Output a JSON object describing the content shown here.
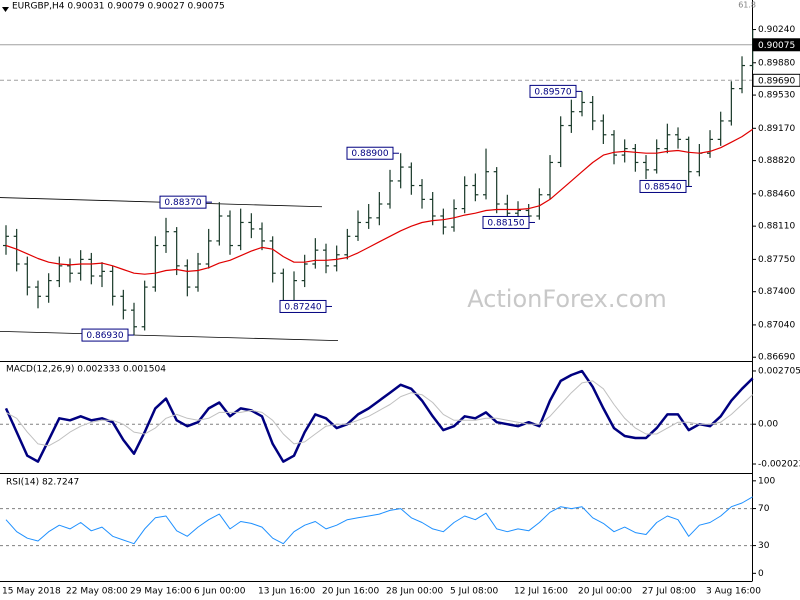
{
  "chart_data": [
    {
      "type": "ohlc",
      "title": "EURGBP,H4 0.90031 0.90079 0.90027 0.90075",
      "categories": [
        "15 May 2018",
        null,
        null,
        null,
        null,
        null,
        "22 May 08:00",
        null,
        null,
        null,
        null,
        null,
        "29 May 16:00",
        null,
        null,
        null,
        null,
        null,
        "6 Jun 00:00",
        null,
        null,
        null,
        null,
        null,
        "13 Jun 16:00",
        null,
        null,
        null,
        null,
        null,
        "20 Jun 16:00",
        null,
        null,
        null,
        null,
        null,
        "28 Jun 00:00",
        null,
        null,
        null,
        null,
        null,
        "5 Jul 08:00",
        null,
        null,
        null,
        null,
        null,
        "12 Jul 16:00",
        null,
        null,
        null,
        null,
        null,
        "20 Jul 00:00",
        null,
        null,
        null,
        null,
        null,
        "27 Jul 08:00",
        null,
        null,
        null,
        null,
        null,
        "3 Aug 16:00",
        null,
        null,
        null,
        null
      ],
      "open": [
        0.879,
        0.88,
        0.877,
        0.8745,
        0.8735,
        0.8752,
        0.8768,
        0.876,
        0.8775,
        0.8757,
        0.8762,
        0.8735,
        0.872,
        0.8702,
        0.8745,
        0.879,
        0.8805,
        0.8768,
        0.8745,
        0.877,
        0.8795,
        0.8822,
        0.879,
        0.8815,
        0.8808,
        0.8795,
        0.876,
        0.873,
        0.8752,
        0.877,
        0.8785,
        0.8768,
        0.878,
        0.88,
        0.8815,
        0.882,
        0.8835,
        0.886,
        0.8875,
        0.8855,
        0.884,
        0.8822,
        0.881,
        0.883,
        0.8855,
        0.8845,
        0.887,
        0.8835,
        0.8825,
        0.8828,
        0.8822,
        0.8845,
        0.888,
        0.892,
        0.8935,
        0.8945,
        0.8925,
        0.891,
        0.8888,
        0.8895,
        0.888,
        0.8872,
        0.8895,
        0.891,
        0.8905,
        0.887,
        0.889,
        0.8905,
        0.8925,
        0.896,
        0.8985
      ],
      "high": [
        0.8812,
        0.8808,
        0.8778,
        0.8752,
        0.876,
        0.8778,
        0.8776,
        0.8785,
        0.8782,
        0.8772,
        0.8768,
        0.8742,
        0.8728,
        0.8752,
        0.88,
        0.882,
        0.881,
        0.8775,
        0.8782,
        0.8808,
        0.8837,
        0.8828,
        0.883,
        0.8825,
        0.8815,
        0.88,
        0.8765,
        0.8762,
        0.878,
        0.8798,
        0.8792,
        0.879,
        0.8808,
        0.8828,
        0.8835,
        0.8848,
        0.8872,
        0.889,
        0.888,
        0.8862,
        0.8848,
        0.883,
        0.884,
        0.8865,
        0.8868,
        0.8895,
        0.8875,
        0.8845,
        0.8838,
        0.8835,
        0.8852,
        0.8888,
        0.893,
        0.8948,
        0.8957,
        0.8952,
        0.8932,
        0.8915,
        0.8905,
        0.89,
        0.8888,
        0.8905,
        0.8922,
        0.8918,
        0.8908,
        0.89,
        0.8915,
        0.8935,
        0.8968,
        0.8995,
        0.9024
      ],
      "low": [
        0.878,
        0.8762,
        0.8736,
        0.8722,
        0.8728,
        0.8745,
        0.875,
        0.8752,
        0.8748,
        0.8745,
        0.8725,
        0.871,
        0.8693,
        0.8698,
        0.874,
        0.8782,
        0.8758,
        0.8735,
        0.874,
        0.8765,
        0.879,
        0.878,
        0.8785,
        0.8798,
        0.8785,
        0.875,
        0.8724,
        0.8726,
        0.8745,
        0.8765,
        0.876,
        0.8762,
        0.8775,
        0.8795,
        0.8808,
        0.8812,
        0.883,
        0.8852,
        0.8845,
        0.883,
        0.8812,
        0.8802,
        0.8805,
        0.8825,
        0.8838,
        0.884,
        0.8825,
        0.8815,
        0.8818,
        0.8815,
        0.8818,
        0.884,
        0.8875,
        0.8912,
        0.893,
        0.8915,
        0.89,
        0.8878,
        0.888,
        0.887,
        0.8862,
        0.8868,
        0.889,
        0.8895,
        0.8854,
        0.8865,
        0.8885,
        0.8898,
        0.892,
        0.8955,
        0.898
      ],
      "close": [
        0.88,
        0.877,
        0.8745,
        0.8735,
        0.8752,
        0.8768,
        0.876,
        0.8775,
        0.8757,
        0.8762,
        0.8735,
        0.872,
        0.8702,
        0.8745,
        0.879,
        0.8805,
        0.8768,
        0.8745,
        0.877,
        0.8795,
        0.8822,
        0.879,
        0.8815,
        0.8808,
        0.8795,
        0.876,
        0.873,
        0.8752,
        0.877,
        0.8785,
        0.8768,
        0.878,
        0.88,
        0.8815,
        0.882,
        0.8835,
        0.886,
        0.8875,
        0.8855,
        0.884,
        0.8822,
        0.881,
        0.883,
        0.8855,
        0.8845,
        0.887,
        0.8835,
        0.8825,
        0.8828,
        0.8822,
        0.8845,
        0.888,
        0.892,
        0.8935,
        0.8945,
        0.8925,
        0.891,
        0.8888,
        0.8895,
        0.888,
        0.8872,
        0.8895,
        0.891,
        0.8905,
        0.887,
        0.889,
        0.8905,
        0.8925,
        0.896,
        0.8985,
        0.90075
      ],
      "color": "#183828",
      "ma": {
        "color": "#e00000",
        "values": [
          0.879,
          0.8786,
          0.8781,
          0.8776,
          0.8772,
          0.877,
          0.8769,
          0.877,
          0.877,
          0.8771,
          0.8768,
          0.8764,
          0.876,
          0.8759,
          0.876,
          0.8763,
          0.8764,
          0.8762,
          0.8763,
          0.8766,
          0.8771,
          0.8774,
          0.8779,
          0.8784,
          0.8788,
          0.8786,
          0.8778,
          0.8772,
          0.8772,
          0.8774,
          0.8774,
          0.8775,
          0.8777,
          0.8782,
          0.8788,
          0.8794,
          0.88,
          0.8806,
          0.8811,
          0.8815,
          0.8817,
          0.8818,
          0.882,
          0.8823,
          0.8825,
          0.8828,
          0.8829,
          0.8829,
          0.8829,
          0.883,
          0.8833,
          0.884,
          0.885,
          0.886,
          0.887,
          0.888,
          0.8888,
          0.8891,
          0.8892,
          0.8891,
          0.889,
          0.889,
          0.8892,
          0.8893,
          0.8891,
          0.889,
          0.8892,
          0.8896,
          0.8902,
          0.8908,
          0.8916
        ]
      },
      "ylim": [
        0.8666,
        0.9043
      ],
      "yticks": [
        {
          "value": 0.8669,
          "label": "0.86690"
        },
        {
          "value": 0.8704,
          "label": "0.87040"
        },
        {
          "value": 0.874,
          "label": "0.87400"
        },
        {
          "value": 0.8775,
          "label": "0.87750"
        },
        {
          "value": 0.8811,
          "label": "0.88110"
        },
        {
          "value": 0.8846,
          "label": "0.88460"
        },
        {
          "value": 0.8882,
          "label": "0.88820"
        },
        {
          "value": 0.8917,
          "label": "0.89170"
        },
        {
          "value": 0.8953,
          "label": "0.89530"
        },
        {
          "value": 0.8988,
          "label": "0.89880"
        },
        {
          "value": 0.9024,
          "label": "0.90240"
        }
      ],
      "price_lines": [
        {
          "value": 0.90075,
          "label": "0.90075",
          "style": "solid"
        },
        {
          "value": 0.8969,
          "label": "0.89690",
          "style": "dashed"
        }
      ],
      "annotations": [
        {
          "value": 0.8837,
          "label": "0.88370"
        },
        {
          "value": 0.8693,
          "label": "0.86930"
        },
        {
          "value": 0.8724,
          "label": "0.87240"
        },
        {
          "value": 0.889,
          "label": "0.88900"
        },
        {
          "value": 0.8815,
          "label": "0.88150"
        },
        {
          "value": 0.8957,
          "label": "0.89570"
        },
        {
          "value": 0.8854,
          "label": "0.88540"
        }
      ],
      "trendlines": [
        {
          "from": 0.8842,
          "to": 0.8832
        },
        {
          "from": 0.8697,
          "to": 0.8687
        }
      ],
      "watermark": "ActionForex.com",
      "corner_label": "61.8"
    },
    {
      "type": "macd",
      "title": "MACD(12,26,9) 0.002333 0.001504",
      "series": [
        {
          "color": "#000080",
          "values": [
            0.0008,
            -0.0004,
            -0.0016,
            -0.0019,
            -0.0008,
            0.0003,
            0.0002,
            0.0004,
            0.0002,
            0.0003,
            0.0001,
            -0.0008,
            -0.0015,
            -0.0004,
            0.0008,
            0.0013,
            0.0002,
            -0.0001,
            0.0001,
            0.0008,
            0.0011,
            0.0004,
            0.0008,
            0.0007,
            0.0004,
            -0.001,
            -0.0019,
            -0.0016,
            -0.0004,
            0.0005,
            0.0003,
            -0.0002,
            0,
            0.0005,
            0.0008,
            0.0012,
            0.0016,
            0.002,
            0.0018,
            0.0012,
            0.0004,
            -0.0003,
            -0.0001,
            0.0004,
            0.0003,
            0.0006,
            0.0001,
            0,
            -0.0001,
            0.0001,
            -0.0001,
            0.0012,
            0.0022,
            0.0025,
            0.0027,
            0.0019,
            0.0008,
            -0.0002,
            -0.0006,
            -0.0007,
            -0.0007,
            -0.0002,
            0.0005,
            0.0005,
            -0.0003,
            0,
            -0.0001,
            0.0004,
            0.0012,
            0.0018,
            0.002333
          ]
        },
        {
          "color": "#c0c0c0",
          "values": [
            0.0006,
            0.0003,
            -0.0004,
            -0.001,
            -0.0011,
            -0.0008,
            -0.0004,
            -0.0001,
            0.0001,
            0.0002,
            0.0002,
            0,
            -0.0004,
            -0.0005,
            -0.0002,
            0.0003,
            0.0005,
            0.0003,
            0.0002,
            0.0003,
            0.0006,
            0.0006,
            0.0006,
            0.0007,
            0.0006,
            0.0002,
            -0.0005,
            -0.001,
            -0.0009,
            -0.0005,
            -0.0001,
            0,
            0,
            0.0002,
            0.0004,
            0.0007,
            0.001,
            0.0014,
            0.0016,
            0.0015,
            0.0011,
            0.0005,
            0.0002,
            0.0002,
            0.0002,
            0.0003,
            0.0003,
            0.0002,
            0.0001,
            0,
            0,
            0.0004,
            0.001,
            0.0016,
            0.0021,
            0.0022,
            0.0018,
            0.001,
            0.0003,
            -0.0002,
            -0.0005,
            -0.0005,
            -0.0002,
            0.0001,
            0.0001,
            0,
            0,
            0.0001,
            0.0005,
            0.001,
            0.001504
          ]
        }
      ],
      "ylim": [
        -0.00243,
        0.00311
      ],
      "yticks": [
        -0.002023,
        {
          "value": 0,
          "label": "0.00"
        },
        0.002705
      ],
      "levels": [
        0
      ]
    },
    {
      "type": "rsi",
      "title": "RSI(14) 82.7247",
      "color": "#1e90ff",
      "values": [
        58,
        45,
        38,
        35,
        45,
        52,
        48,
        55,
        46,
        50,
        40,
        36,
        32,
        48,
        60,
        62,
        46,
        40,
        50,
        58,
        64,
        48,
        56,
        54,
        50,
        38,
        32,
        45,
        52,
        56,
        48,
        52,
        58,
        60,
        62,
        64,
        68,
        70,
        60,
        55,
        48,
        45,
        55,
        62,
        58,
        65,
        48,
        45,
        48,
        46,
        55,
        66,
        72,
        70,
        72,
        60,
        54,
        45,
        50,
        44,
        42,
        55,
        62,
        58,
        40,
        52,
        55,
        62,
        72,
        76,
        82.7247
      ],
      "ylim": [
        -7.2,
        106.3
      ],
      "yticks": [
        0,
        30,
        70,
        100
      ],
      "levels": [
        30,
        70
      ]
    }
  ]
}
